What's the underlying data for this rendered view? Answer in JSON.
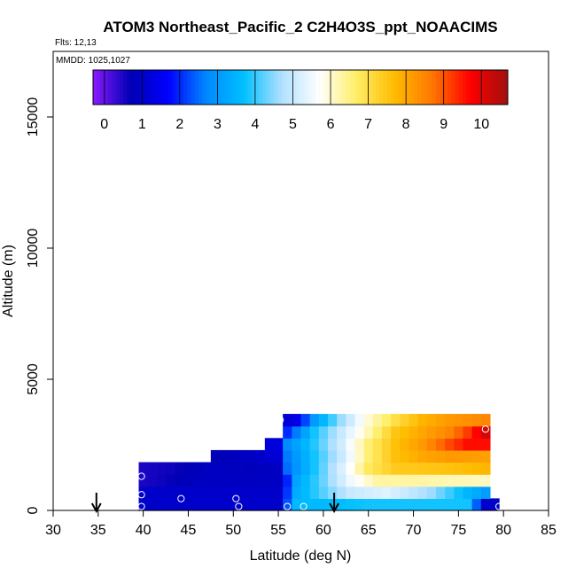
{
  "chart_data": {
    "type": "heatmap",
    "title": "ATOM3 Northeast_Pacific_2 C2H4O3S_ppt_NOAACIMS",
    "flights_label": "Flts: 12,13",
    "date_label": "MMDD: 1025,1027",
    "xlabel": "Latitude (deg N)",
    "ylabel": "Altitude (m)",
    "xlim": [
      30,
      85
    ],
    "ylim": [
      0,
      17500
    ],
    "xticks": [
      30,
      35,
      40,
      45,
      50,
      55,
      60,
      65,
      70,
      75,
      80,
      85
    ],
    "yticks": [
      0,
      5000,
      10000,
      15000
    ],
    "colorbar": {
      "min": -0.3,
      "max": 10.7,
      "ticks": [
        0,
        1,
        2,
        3,
        4,
        5,
        6,
        7,
        8,
        9,
        10
      ],
      "colors": [
        "#8b1aff",
        "#0000b4",
        "#0000ff",
        "#0088ff",
        "#00c0ff",
        "#b0e0ff",
        "#ffffff",
        "#ffee66",
        "#ffbb00",
        "#ff7700",
        "#ff0000",
        "#a01010"
      ]
    },
    "cell_size": {
      "dlat": 1,
      "dalt": 460
    },
    "rows": [
      {
        "alt_bottom": 0,
        "lat_start": 39.5,
        "lat_end": 79.5,
        "values_desc": "0-460 m",
        "anchors": [
          [
            39.5,
            1.0
          ],
          [
            55.5,
            1.0
          ],
          [
            56.5,
            3.6
          ],
          [
            60,
            3.6
          ],
          [
            65,
            3.8
          ],
          [
            70,
            3.8
          ],
          [
            76,
            3.8
          ],
          [
            78,
            1.0
          ],
          [
            79.5,
            1.0
          ]
        ]
      },
      {
        "alt_bottom": 460,
        "lat_start": 39.5,
        "lat_end": 78.5,
        "anchors": [
          [
            39.5,
            1.0
          ],
          [
            55.5,
            1.0
          ],
          [
            56.5,
            3.2
          ],
          [
            60,
            4.2
          ],
          [
            63,
            5.0
          ],
          [
            67,
            5.3
          ],
          [
            72,
            4.6
          ],
          [
            76,
            3.5
          ],
          [
            78.5,
            3.0
          ]
        ]
      },
      {
        "alt_bottom": 920,
        "lat_start": 39.5,
        "lat_end": 78.5,
        "anchors": [
          [
            39.5,
            0.5
          ],
          [
            42,
            0.6
          ],
          [
            47,
            0.9
          ],
          [
            52,
            0.9
          ],
          [
            55.5,
            0.9
          ],
          [
            56.5,
            3.0
          ],
          [
            60,
            4.3
          ],
          [
            63,
            5.5
          ],
          [
            66,
            6.3
          ],
          [
            70,
            6.3
          ],
          [
            74,
            6.2
          ],
          [
            78.5,
            6.1
          ]
        ]
      },
      {
        "alt_bottom": 1380,
        "lat_start": 39.5,
        "lat_end": 78.5,
        "anchors": [
          [
            39.5,
            0.5
          ],
          [
            43,
            0.6
          ],
          [
            48,
            0.9
          ],
          [
            52,
            0.8
          ],
          [
            55,
            0.9
          ],
          [
            56,
            2.5
          ],
          [
            59,
            3.8
          ],
          [
            62,
            5.2
          ],
          [
            65,
            6.8
          ],
          [
            68,
            7.4
          ],
          [
            72,
            7.5
          ],
          [
            75,
            7.6
          ],
          [
            78.5,
            7.8
          ]
        ]
      },
      {
        "alt_bottom": 1840,
        "lat_start": 47.5,
        "lat_end": 78.5,
        "anchors": [
          [
            47.5,
            0.7
          ],
          [
            52,
            0.9
          ],
          [
            55.5,
            1.2
          ],
          [
            56,
            2.6
          ],
          [
            59,
            3.8
          ],
          [
            62,
            5.0
          ],
          [
            65,
            6.6
          ],
          [
            68,
            7.6
          ],
          [
            71,
            8.0
          ],
          [
            74,
            8.2
          ],
          [
            78.5,
            8.1
          ]
        ]
      },
      {
        "alt_bottom": 2300,
        "lat_start": 53.5,
        "lat_end": 78.5,
        "anchors": [
          [
            53.5,
            1.2
          ],
          [
            55.5,
            1.3
          ],
          [
            56,
            2.8
          ],
          [
            59,
            3.9
          ],
          [
            62,
            5.1
          ],
          [
            65,
            6.6
          ],
          [
            68,
            7.6
          ],
          [
            71,
            8.2
          ],
          [
            74,
            9.1
          ],
          [
            76,
            9.6
          ],
          [
            78.5,
            9.6
          ]
        ]
      },
      {
        "alt_bottom": 2760,
        "lat_start": 55.5,
        "lat_end": 78.5,
        "anchors": [
          [
            55.5,
            1.2
          ],
          [
            56,
            2.0
          ],
          [
            59,
            3.8
          ],
          [
            62,
            5.0
          ],
          [
            65,
            6.2
          ],
          [
            68,
            7.5
          ],
          [
            71,
            8.0
          ],
          [
            74,
            8.5
          ],
          [
            76,
            9.2
          ],
          [
            78.5,
            10.4
          ]
        ]
      },
      {
        "alt_bottom": 3220,
        "lat_start": 55.5,
        "lat_end": 78.5,
        "anchors": [
          [
            55.5,
            1.0
          ],
          [
            57,
            1.4
          ],
          [
            59,
            3.0
          ],
          [
            62,
            4.6
          ],
          [
            65,
            6.0
          ],
          [
            68,
            7.0
          ],
          [
            71,
            7.8
          ],
          [
            74,
            8.2
          ],
          [
            78.5,
            8.5
          ]
        ]
      }
    ],
    "markers": [
      {
        "lat": 39.8,
        "alt": 1300
      },
      {
        "lat": 39.8,
        "alt": 600
      },
      {
        "lat": 39.8,
        "alt": 150
      },
      {
        "lat": 44.2,
        "alt": 450
      },
      {
        "lat": 50.3,
        "alt": 450
      },
      {
        "lat": 50.6,
        "alt": 150
      },
      {
        "lat": 55.2,
        "alt": 3450
      },
      {
        "lat": 56.0,
        "alt": 150
      },
      {
        "lat": 57.8,
        "alt": 150
      },
      {
        "lat": 78.0,
        "alt": 3100
      },
      {
        "lat": 79.5,
        "alt": 150
      }
    ],
    "arrows": [
      {
        "lat": 34.8
      },
      {
        "lat": 61.2
      }
    ]
  }
}
